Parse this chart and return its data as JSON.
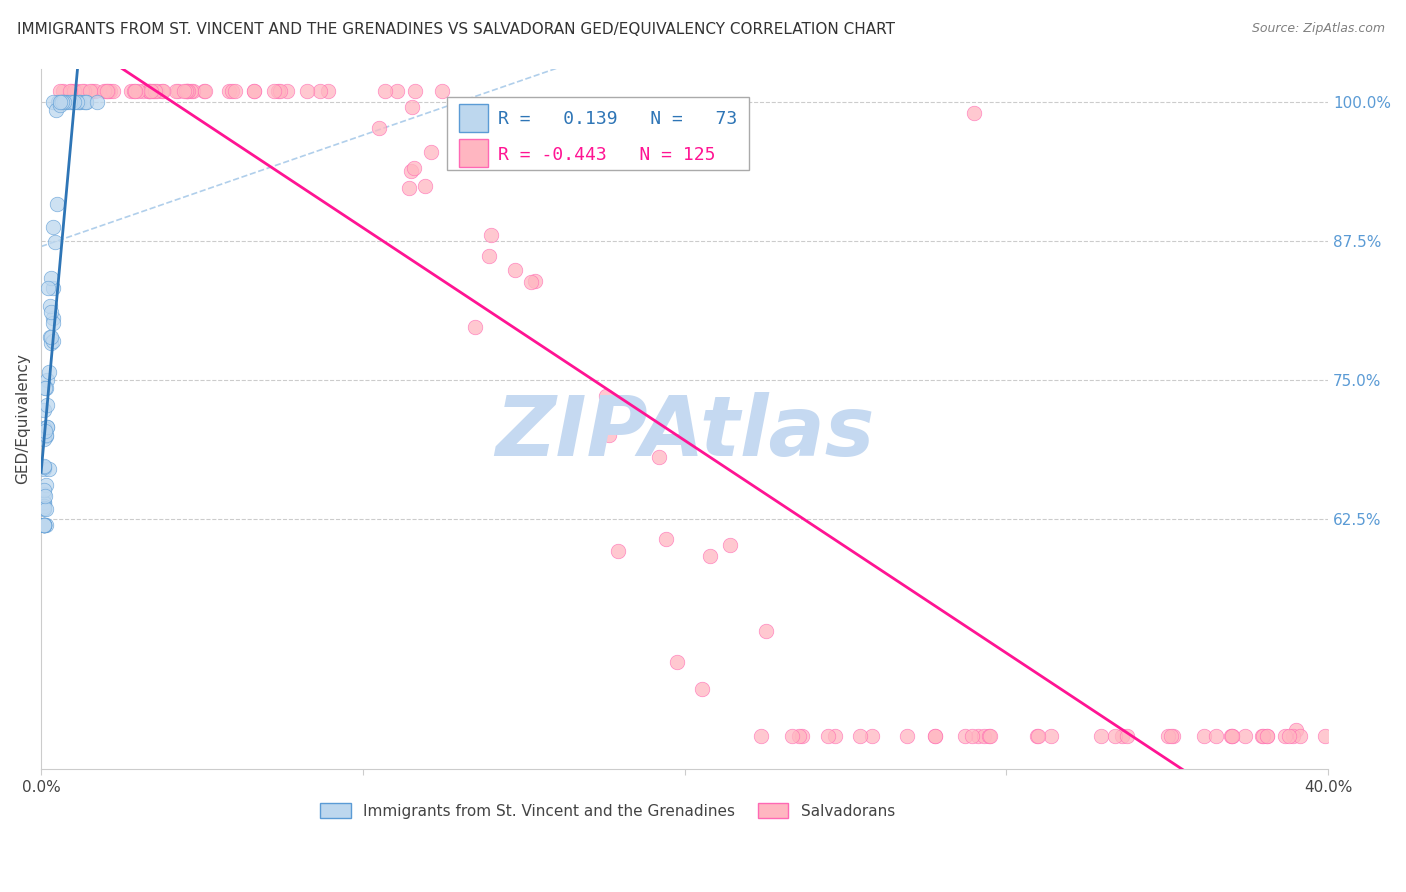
{
  "title": "IMMIGRANTS FROM ST. VINCENT AND THE GRENADINES VS SALVADORAN GED/EQUIVALENCY CORRELATION CHART",
  "source": "Source: ZipAtlas.com",
  "ylabel": "GED/Equivalency",
  "ytick_labels": [
    "100.0%",
    "87.5%",
    "75.0%",
    "62.5%"
  ],
  "ytick_values": [
    1.0,
    0.875,
    0.75,
    0.625
  ],
  "xlim": [
    0.0,
    0.4
  ],
  "ylim": [
    0.4,
    1.03
  ],
  "legend_blue_r": "0.139",
  "legend_blue_n": "73",
  "legend_pink_r": "-0.443",
  "legend_pink_n": "125",
  "legend_label_blue": "Immigrants from St. Vincent and the Grenadines",
  "legend_label_pink": "Salvadorans",
  "blue_fill_color": "#BDD7EE",
  "blue_edge_color": "#5B9BD5",
  "pink_fill_color": "#FFB6C1",
  "pink_edge_color": "#FF69B4",
  "trendline_blue_color": "#2E75B6",
  "trendline_pink_color": "#FF1493",
  "diagonal_color": "#9DC3E6",
  "title_fontsize": 11,
  "axis_label_fontsize": 11,
  "tick_fontsize": 11,
  "legend_fontsize": 12,
  "watermark_text": "ZIPAtlas",
  "watermark_color": "#C5D9F1",
  "watermark_fontsize": 60,
  "background_color": "#FFFFFF",
  "grid_color": "#CCCCCC",
  "ytick_color": "#5B9BD5",
  "source_color": "#808080"
}
